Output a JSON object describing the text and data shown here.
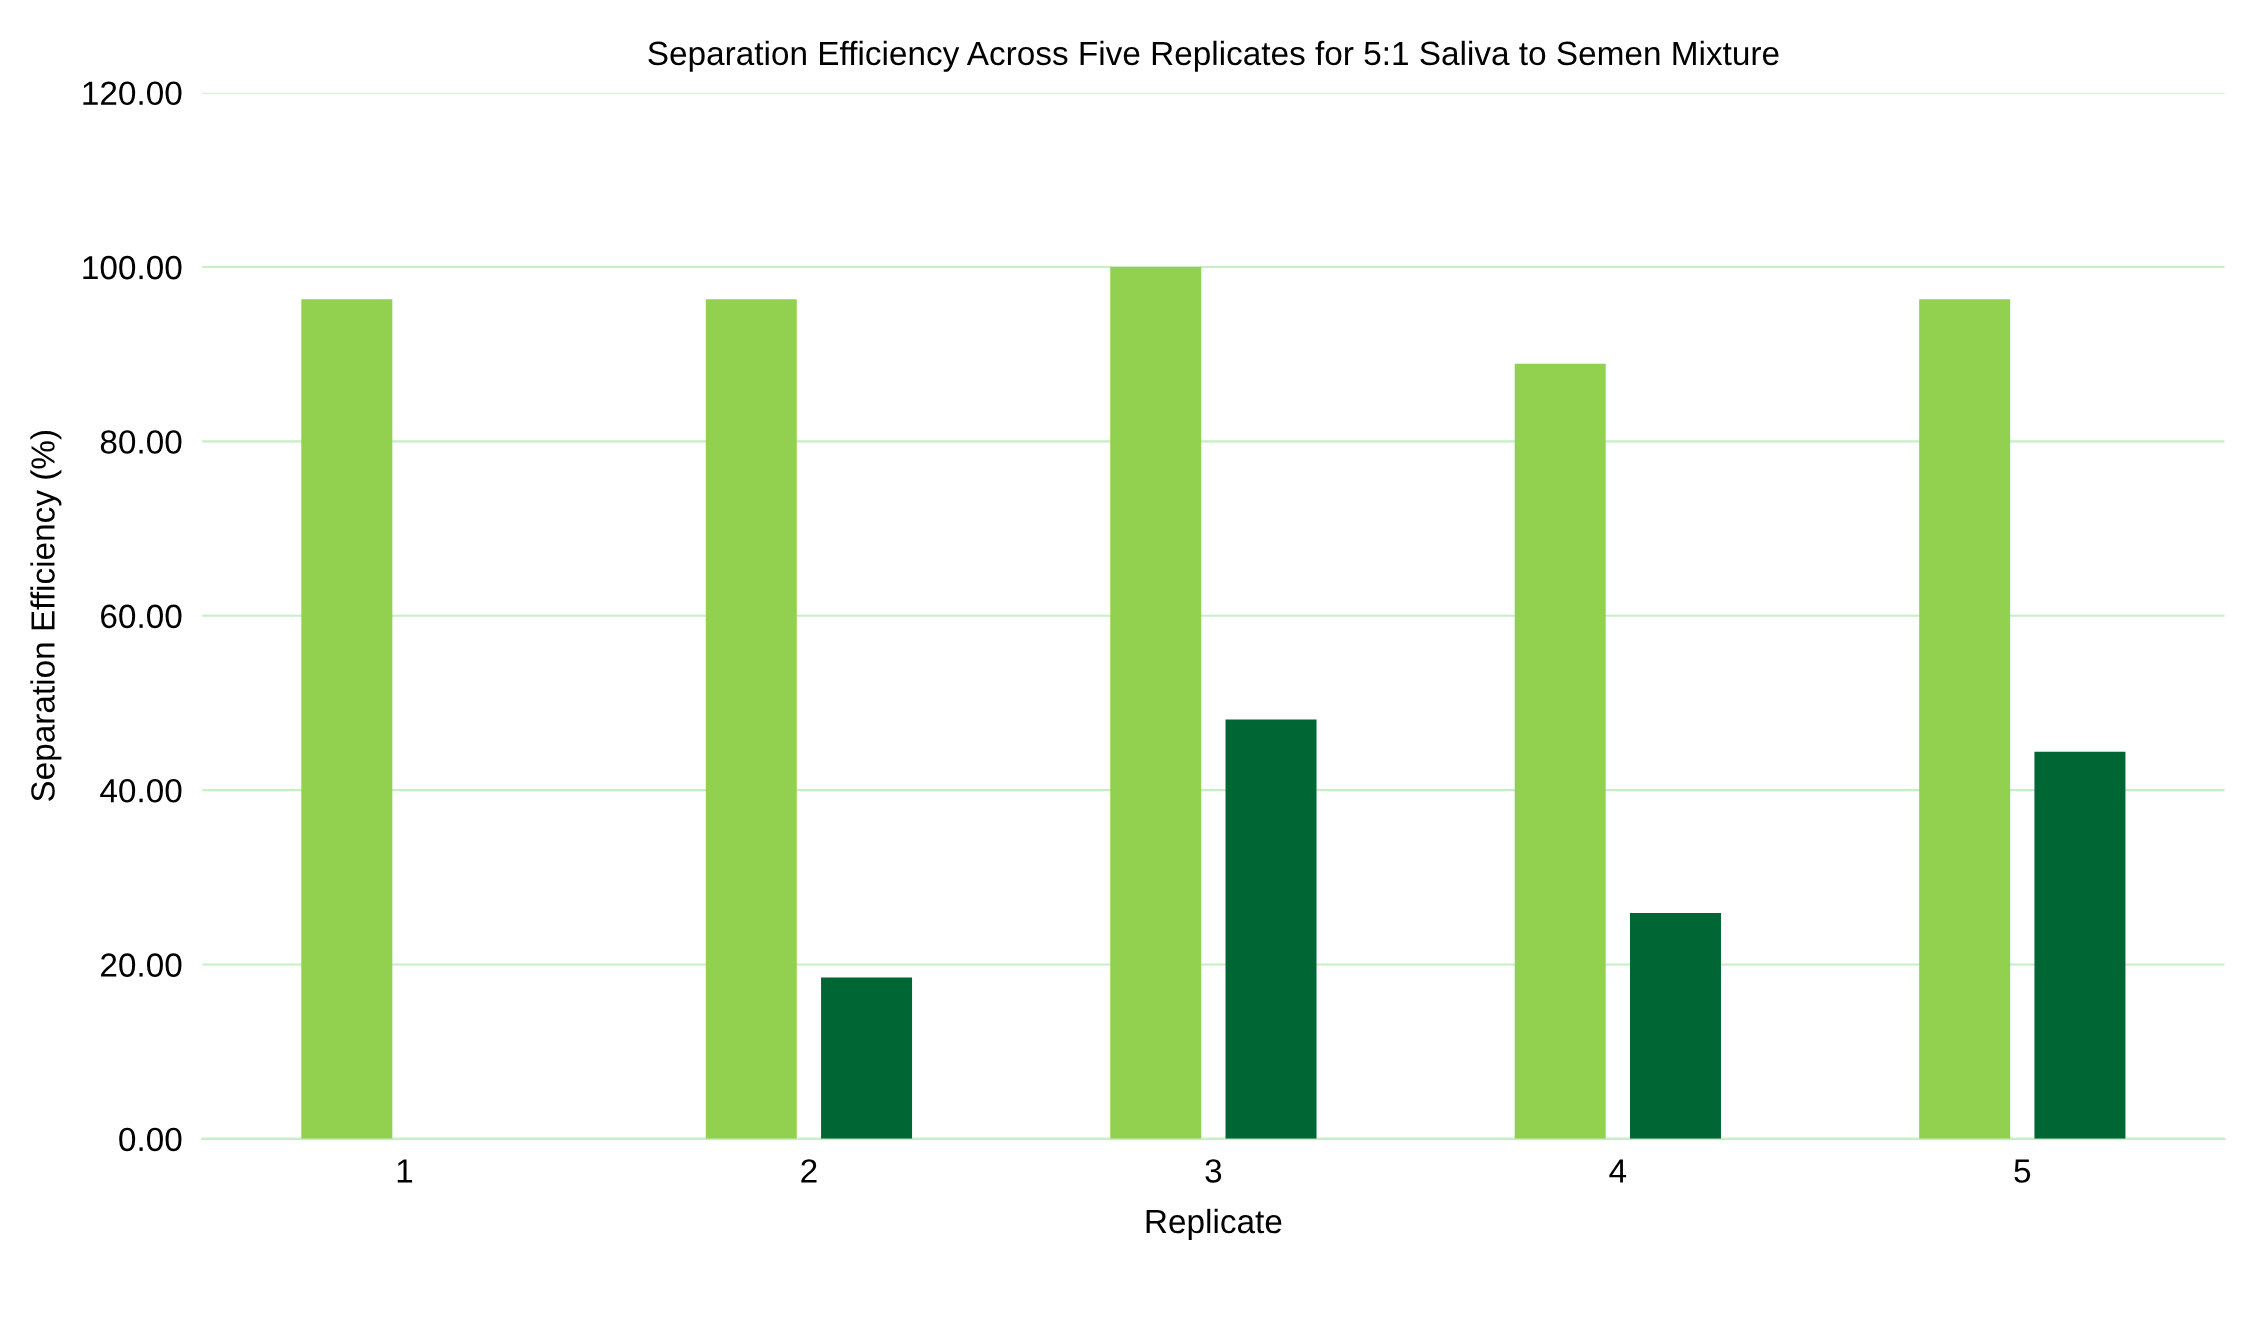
{
  "chart_data": {
    "type": "bar",
    "title": "Separation Efficiency Across Five Replicates for 5:1 Saliva to Semen Mixture",
    "xlabel": "Replicate",
    "ylabel": "Separation Efficiency (%)",
    "categories": [
      "1",
      "2",
      "3",
      "4",
      "5"
    ],
    "series": [
      {
        "color": "#92d050",
        "values": [
          96.3,
          96.3,
          100,
          88.9,
          96.3
        ]
      },
      {
        "color": "#006633",
        "values": [
          0,
          18.5,
          48.1,
          25.9,
          44.4
        ]
      }
    ],
    "ylim": [
      0,
      120
    ],
    "yticks": [
      {
        "value": 0,
        "label": "0.00"
      },
      {
        "value": 20,
        "label": "20.00"
      },
      {
        "value": 40,
        "label": "40.00"
      },
      {
        "value": 60,
        "label": "60.00"
      },
      {
        "value": 80,
        "label": "80.00"
      },
      {
        "value": 100,
        "label": "100.00"
      },
      {
        "value": 120,
        "label": "120.00"
      }
    ],
    "grid": "y"
  }
}
